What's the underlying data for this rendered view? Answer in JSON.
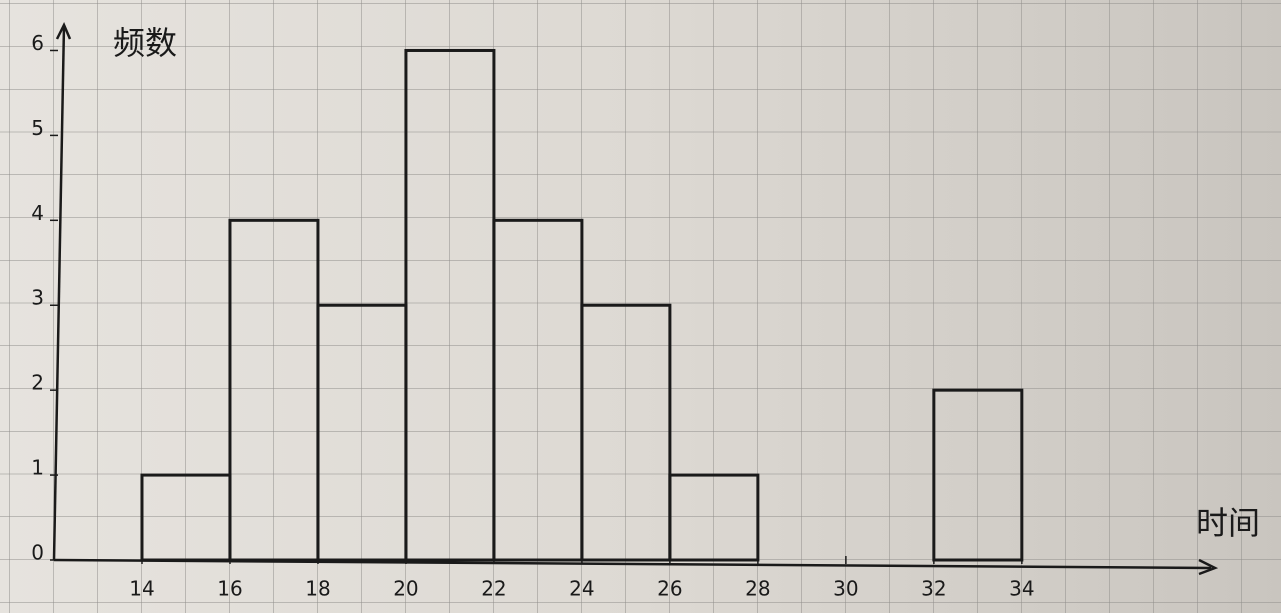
{
  "chart_data": {
    "type": "histogram",
    "x_label": "时间",
    "y_label": "频数",
    "bins": [
      14,
      16,
      18,
      20,
      22,
      24,
      26,
      28,
      30,
      32,
      34
    ],
    "values": [
      1,
      4,
      3,
      6,
      4,
      3,
      1,
      0,
      0,
      2
    ],
    "color": "#1a1a1a",
    "xlim": [
      12,
      38.3
    ],
    "xticks": [
      14,
      16,
      18,
      20,
      22,
      24,
      26,
      28,
      30,
      32,
      34
    ],
    "ylim": [
      0,
      6.3
    ],
    "yticks": [
      0,
      1,
      2,
      3,
      4,
      5,
      6
    ],
    "grid": true
  }
}
